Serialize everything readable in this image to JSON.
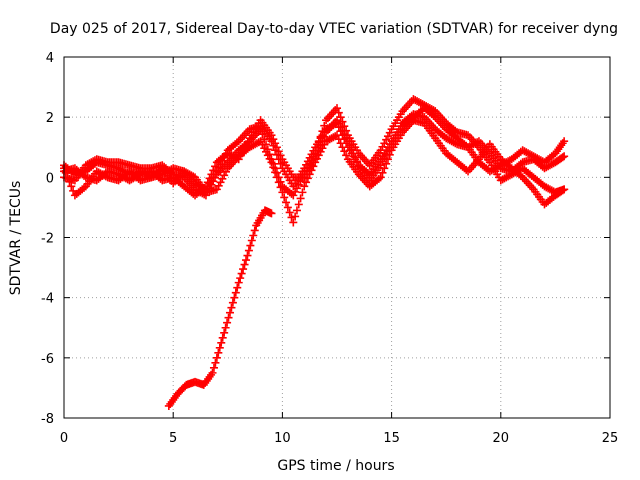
{
  "chart_data": {
    "type": "scatter",
    "title": "Day 025 of 2017, Sidereal Day-to-day VTEC variation (SDTVAR) for receiver dyng",
    "xlabel": "GPS time / hours",
    "ylabel": "SDTVAR / TECUs",
    "xlim": [
      0,
      25
    ],
    "ylim": [
      -8,
      4
    ],
    "xticks": [
      "0",
      "5",
      "10",
      "15",
      "20",
      "25"
    ],
    "yticks": [
      "-8",
      "-6",
      "-4",
      "-2",
      "0",
      "2",
      "4"
    ],
    "grid": true,
    "marker": "plus",
    "color": "#ff0000",
    "series": [
      {
        "name": "track-a",
        "points": [
          [
            0,
            0.4
          ],
          [
            0.5,
            0.1
          ],
          [
            1,
            0.2
          ],
          [
            1.5,
            0.5
          ],
          [
            2,
            0.4
          ],
          [
            2.5,
            0.3
          ],
          [
            3,
            0.1
          ],
          [
            3.5,
            0.2
          ],
          [
            4,
            0.0
          ],
          [
            4.5,
            0.1
          ],
          [
            5,
            0.3
          ],
          [
            5.5,
            0.2
          ],
          [
            6,
            -0.2
          ],
          [
            6.5,
            -0.4
          ],
          [
            7,
            0.2
          ],
          [
            7.5,
            0.9
          ],
          [
            8,
            1.2
          ],
          [
            8.5,
            1.6
          ],
          [
            9,
            1.7
          ],
          [
            9.5,
            1.2
          ],
          [
            10,
            0.3
          ],
          [
            10.5,
            -0.3
          ],
          [
            11,
            0.3
          ],
          [
            11.5,
            1.0
          ],
          [
            12,
            1.6
          ],
          [
            12.5,
            1.8
          ],
          [
            13,
            1.0
          ],
          [
            13.5,
            0.4
          ],
          [
            14,
            0.1
          ],
          [
            14.5,
            0.6
          ],
          [
            15,
            1.2
          ],
          [
            15.5,
            1.8
          ],
          [
            16,
            2.1
          ],
          [
            16.5,
            2.0
          ],
          [
            17,
            1.6
          ],
          [
            17.5,
            1.3
          ],
          [
            18,
            1.1
          ],
          [
            18.5,
            1.0
          ],
          [
            19,
            1.2
          ],
          [
            19.5,
            0.8
          ],
          [
            20,
            0.3
          ],
          [
            20.5,
            0.2
          ],
          [
            21,
            0.5
          ],
          [
            21.5,
            0.6
          ],
          [
            22,
            0.3
          ],
          [
            22.5,
            0.5
          ],
          [
            22.9,
            0.7
          ]
        ]
      },
      {
        "name": "track-b",
        "points": [
          [
            0,
            0.0
          ],
          [
            0.5,
            -0.1
          ],
          [
            1,
            0.4
          ],
          [
            1.5,
            0.6
          ],
          [
            2,
            0.5
          ],
          [
            2.5,
            0.5
          ],
          [
            3,
            0.4
          ],
          [
            3.5,
            0.3
          ],
          [
            4,
            0.3
          ],
          [
            4.5,
            0.4
          ],
          [
            5,
            0.1
          ],
          [
            5.5,
            0.0
          ],
          [
            6,
            -0.4
          ],
          [
            6.5,
            -0.6
          ],
          [
            7,
            0.1
          ],
          [
            7.5,
            0.5
          ],
          [
            8,
            0.9
          ],
          [
            8.5,
            1.2
          ],
          [
            9,
            1.6
          ],
          [
            9.5,
            0.6
          ],
          [
            10,
            -0.3
          ],
          [
            10.5,
            -0.6
          ],
          [
            11,
            0.1
          ],
          [
            11.5,
            0.8
          ],
          [
            12,
            1.9
          ],
          [
            12.5,
            2.3
          ],
          [
            13,
            1.4
          ],
          [
            13.5,
            0.8
          ],
          [
            14,
            0.4
          ],
          [
            14.5,
            0.9
          ],
          [
            15,
            1.6
          ],
          [
            15.5,
            2.2
          ],
          [
            16,
            2.6
          ],
          [
            16.5,
            2.4
          ],
          [
            17,
            2.2
          ],
          [
            17.5,
            1.8
          ],
          [
            18,
            1.5
          ],
          [
            18.5,
            1.4
          ],
          [
            19,
            1.0
          ],
          [
            19.5,
            0.5
          ],
          [
            20,
            -0.1
          ],
          [
            20.5,
            0.1
          ],
          [
            21,
            0.3
          ],
          [
            21.5,
            0.0
          ],
          [
            22,
            -0.3
          ],
          [
            22.5,
            -0.5
          ],
          [
            22.9,
            -0.4
          ]
        ]
      },
      {
        "name": "track-c",
        "points": [
          [
            0,
            0.3
          ],
          [
            0.5,
            -0.6
          ],
          [
            1,
            -0.3
          ],
          [
            1.5,
            0.2
          ],
          [
            2,
            0.0
          ],
          [
            2.5,
            -0.1
          ],
          [
            3,
            0.2
          ],
          [
            3.5,
            -0.1
          ],
          [
            4,
            0.0
          ],
          [
            4.5,
            0.3
          ],
          [
            5,
            -0.2
          ],
          [
            5.5,
            0.2
          ],
          [
            6,
            0.0
          ],
          [
            6.5,
            -0.5
          ],
          [
            7,
            -0.4
          ],
          [
            7.5,
            0.3
          ],
          [
            8,
            0.7
          ],
          [
            8.5,
            1.0
          ],
          [
            9,
            1.2
          ],
          [
            9.5,
            0.5
          ],
          [
            10,
            -0.5
          ],
          [
            10.5,
            -1.5
          ],
          [
            11,
            -0.3
          ],
          [
            11.5,
            0.5
          ],
          [
            12,
            1.2
          ],
          [
            12.5,
            1.4
          ],
          [
            13,
            0.6
          ],
          [
            13.5,
            0.1
          ],
          [
            14,
            -0.3
          ],
          [
            14.5,
            0.0
          ],
          [
            15,
            0.9
          ],
          [
            15.5,
            1.5
          ],
          [
            16,
            1.9
          ],
          [
            16.5,
            1.8
          ],
          [
            17,
            1.3
          ],
          [
            17.5,
            0.8
          ],
          [
            18,
            0.5
          ],
          [
            18.5,
            0.2
          ],
          [
            19,
            0.6
          ],
          [
            19.5,
            1.1
          ],
          [
            20,
            0.6
          ],
          [
            20.5,
            0.3
          ],
          [
            21,
            0.0
          ],
          [
            21.5,
            -0.4
          ],
          [
            22,
            -0.9
          ],
          [
            22.5,
            -0.6
          ],
          [
            22.9,
            -0.4
          ]
        ]
      },
      {
        "name": "track-d",
        "points": [
          [
            0,
            0.2
          ],
          [
            0.5,
            0.3
          ],
          [
            1,
            0.0
          ],
          [
            1.5,
            -0.1
          ],
          [
            2,
            0.2
          ],
          [
            2.5,
            0.1
          ],
          [
            3,
            -0.1
          ],
          [
            3.5,
            0.1
          ],
          [
            4,
            0.2
          ],
          [
            4.5,
            -0.1
          ],
          [
            5,
            0.0
          ],
          [
            5.5,
            -0.3
          ],
          [
            6,
            -0.6
          ],
          [
            6.5,
            -0.3
          ],
          [
            7,
            0.5
          ],
          [
            7.5,
            0.8
          ],
          [
            8,
            0.6
          ],
          [
            8.5,
            1.3
          ],
          [
            9,
            1.9
          ],
          [
            9.5,
            1.4
          ],
          [
            10,
            0.6
          ],
          [
            10.5,
            0.0
          ],
          [
            11,
            0.0
          ],
          [
            11.5,
            0.6
          ],
          [
            12,
            1.5
          ],
          [
            12.5,
            1.9
          ],
          [
            13,
            1.2
          ],
          [
            13.5,
            0.4
          ],
          [
            14,
            -0.1
          ],
          [
            14.5,
            0.4
          ],
          [
            15,
            1.1
          ],
          [
            15.5,
            1.7
          ],
          [
            16,
            2.0
          ],
          [
            16.5,
            2.3
          ],
          [
            17,
            2.0
          ],
          [
            17.5,
            1.6
          ],
          [
            18,
            1.3
          ],
          [
            18.5,
            1.0
          ],
          [
            19,
            0.5
          ],
          [
            19.5,
            0.2
          ],
          [
            20,
            0.4
          ],
          [
            20.5,
            0.6
          ],
          [
            21,
            0.9
          ],
          [
            21.5,
            0.7
          ],
          [
            22,
            0.5
          ],
          [
            22.5,
            0.8
          ],
          [
            22.9,
            1.2
          ]
        ]
      },
      {
        "name": "track-e",
        "points": [
          [
            4.8,
            -7.6
          ],
          [
            5.2,
            -7.2
          ],
          [
            5.6,
            -6.9
          ],
          [
            6.0,
            -6.8
          ],
          [
            6.4,
            -6.9
          ],
          [
            6.8,
            -6.5
          ],
          [
            7.2,
            -5.5
          ],
          [
            7.6,
            -4.5
          ],
          [
            8.0,
            -3.5
          ],
          [
            8.4,
            -2.6
          ],
          [
            8.8,
            -1.6
          ],
          [
            9.2,
            -1.1
          ],
          [
            9.5,
            -1.2
          ]
        ]
      }
    ]
  }
}
